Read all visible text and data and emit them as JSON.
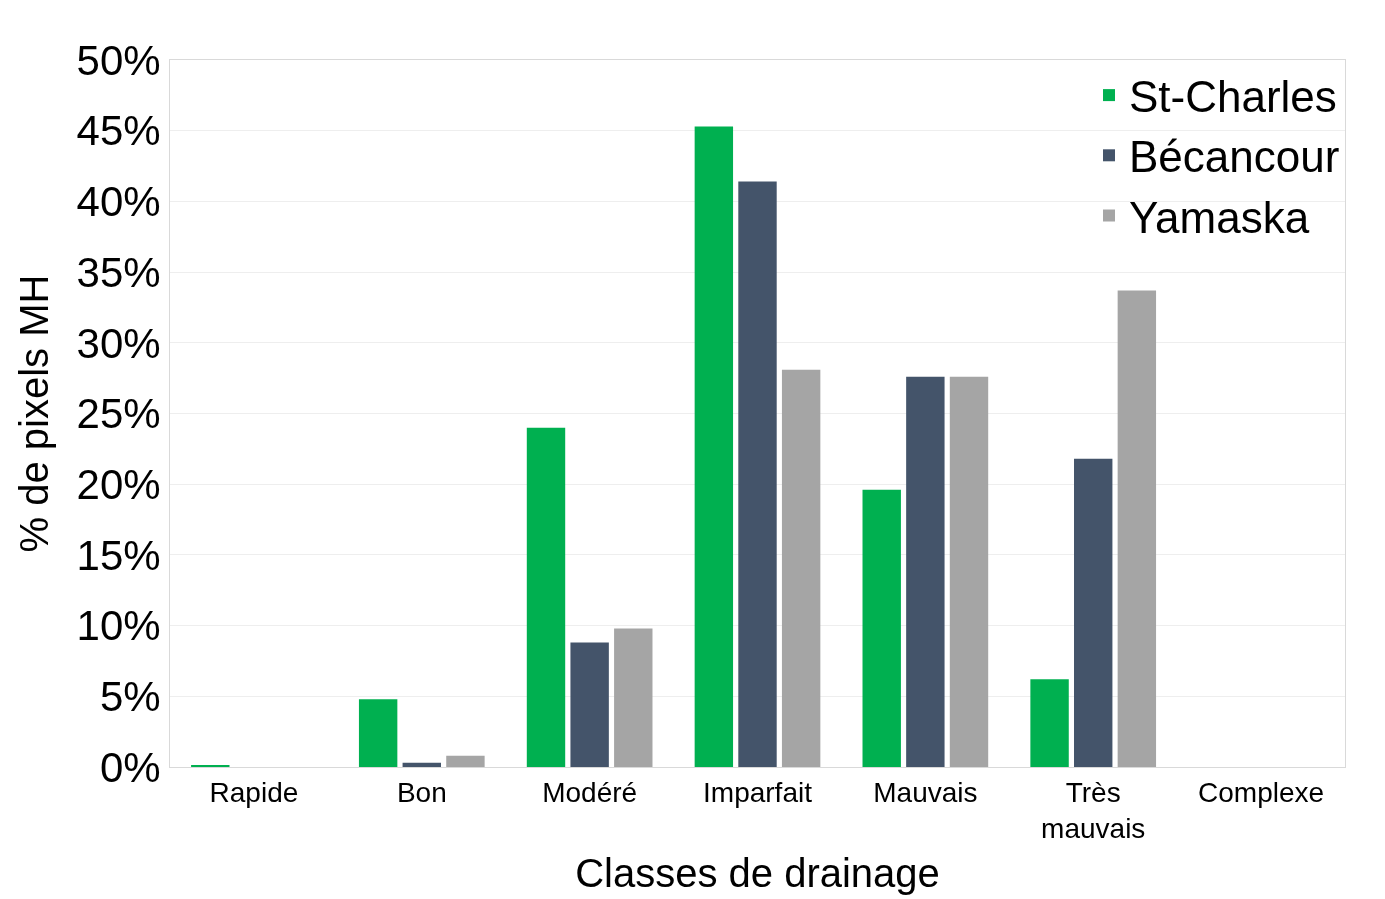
{
  "chart_data": {
    "type": "bar",
    "xlabel": "Classes de drainage",
    "ylabel": "% de pixels MH",
    "categories": [
      "Rapide",
      "Bon",
      "Modéré",
      "Imparfait",
      "Mauvais",
      "Très mauvais",
      "Complexe"
    ],
    "series": [
      {
        "name": "St-Charles",
        "color": "#00b050",
        "values": [
          0.1,
          4.8,
          24.0,
          45.3,
          19.6,
          6.2,
          0
        ]
      },
      {
        "name": "Bécancour",
        "color": "#44546a",
        "values": [
          0,
          0.3,
          8.8,
          41.4,
          27.6,
          21.8,
          0
        ]
      },
      {
        "name": "Yamaska",
        "color": "#a5a5a5",
        "values": [
          0,
          0.8,
          9.8,
          28.1,
          27.6,
          33.7,
          0
        ]
      }
    ],
    "ylim": [
      0,
      50
    ],
    "yticks": [
      {
        "value": 0,
        "label": "0%"
      },
      {
        "value": 5,
        "label": "5%"
      },
      {
        "value": 10,
        "label": "10%"
      },
      {
        "value": 15,
        "label": "15%"
      },
      {
        "value": 20,
        "label": "20%"
      },
      {
        "value": 25,
        "label": "25%"
      },
      {
        "value": 30,
        "label": "30%"
      },
      {
        "value": 35,
        "label": "35%"
      },
      {
        "value": 40,
        "label": "40%"
      },
      {
        "value": 45,
        "label": "45%"
      },
      {
        "value": 50,
        "label": "50%"
      }
    ],
    "grid": "y",
    "legend": "top right"
  }
}
